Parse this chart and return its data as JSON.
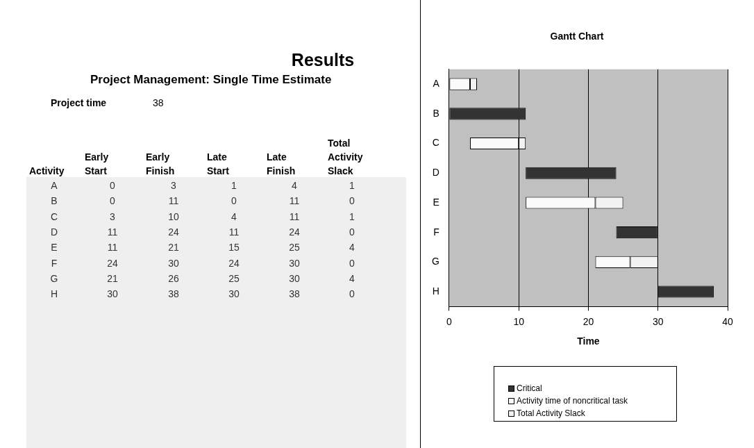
{
  "chart_data": [
    {
      "type": "heatmap",
      "title": "Results",
      "subtitle": "Project Management: Single Time Estimate",
      "annotations": [
        "Project time",
        "38"
      ],
      "ylabel": "Activity",
      "color": "#efefef",
      "categories": [
        "Early Start",
        "Early Finish",
        "Late Start",
        "Late Finish",
        "Total Activity Slack"
      ],
      "y_categories": [
        "A",
        "B",
        "C",
        "D",
        "E",
        "F",
        "G",
        "H"
      ],
      "data_labels": true,
      "cells": [
        [
          0,
          3,
          1,
          4,
          1
        ],
        [
          0,
          11,
          0,
          11,
          0
        ],
        [
          3,
          10,
          4,
          11,
          1
        ],
        [
          11,
          24,
          11,
          24,
          0
        ],
        [
          11,
          21,
          15,
          25,
          4
        ],
        [
          24,
          30,
          24,
          30,
          0
        ],
        [
          21,
          26,
          25,
          30,
          4
        ],
        [
          30,
          38,
          30,
          38,
          0
        ]
      ]
    },
    {
      "type": "bar",
      "orientation": "horizontal",
      "title": "Gantt Chart",
      "xlabel": "Time",
      "xlim": [
        0,
        40
      ],
      "xticks": [
        0,
        10,
        20,
        30,
        40
      ],
      "grid": "x",
      "legend": "bottom",
      "categories": [
        "A",
        "B",
        "C",
        "D",
        "E",
        "F",
        "G",
        "H"
      ],
      "series": [
        {
          "name": "Critical",
          "color": "#333333",
          "base": [
            null,
            0,
            null,
            11,
            null,
            24,
            null,
            30
          ],
          "values": [
            null,
            11,
            null,
            13,
            null,
            6,
            null,
            8
          ]
        },
        {
          "name": "Activity time of noncritical task",
          "color": "#fafafa",
          "base": [
            0,
            null,
            3,
            null,
            11,
            null,
            21,
            null
          ],
          "values": [
            3,
            null,
            7,
            null,
            10,
            null,
            5,
            null
          ]
        },
        {
          "name": "Total Activity Slack",
          "color": "#f2f2f2",
          "base": [
            3,
            null,
            10,
            null,
            21,
            null,
            26,
            null
          ],
          "values": [
            1,
            null,
            1,
            null,
            4,
            null,
            4,
            null
          ]
        }
      ]
    }
  ]
}
